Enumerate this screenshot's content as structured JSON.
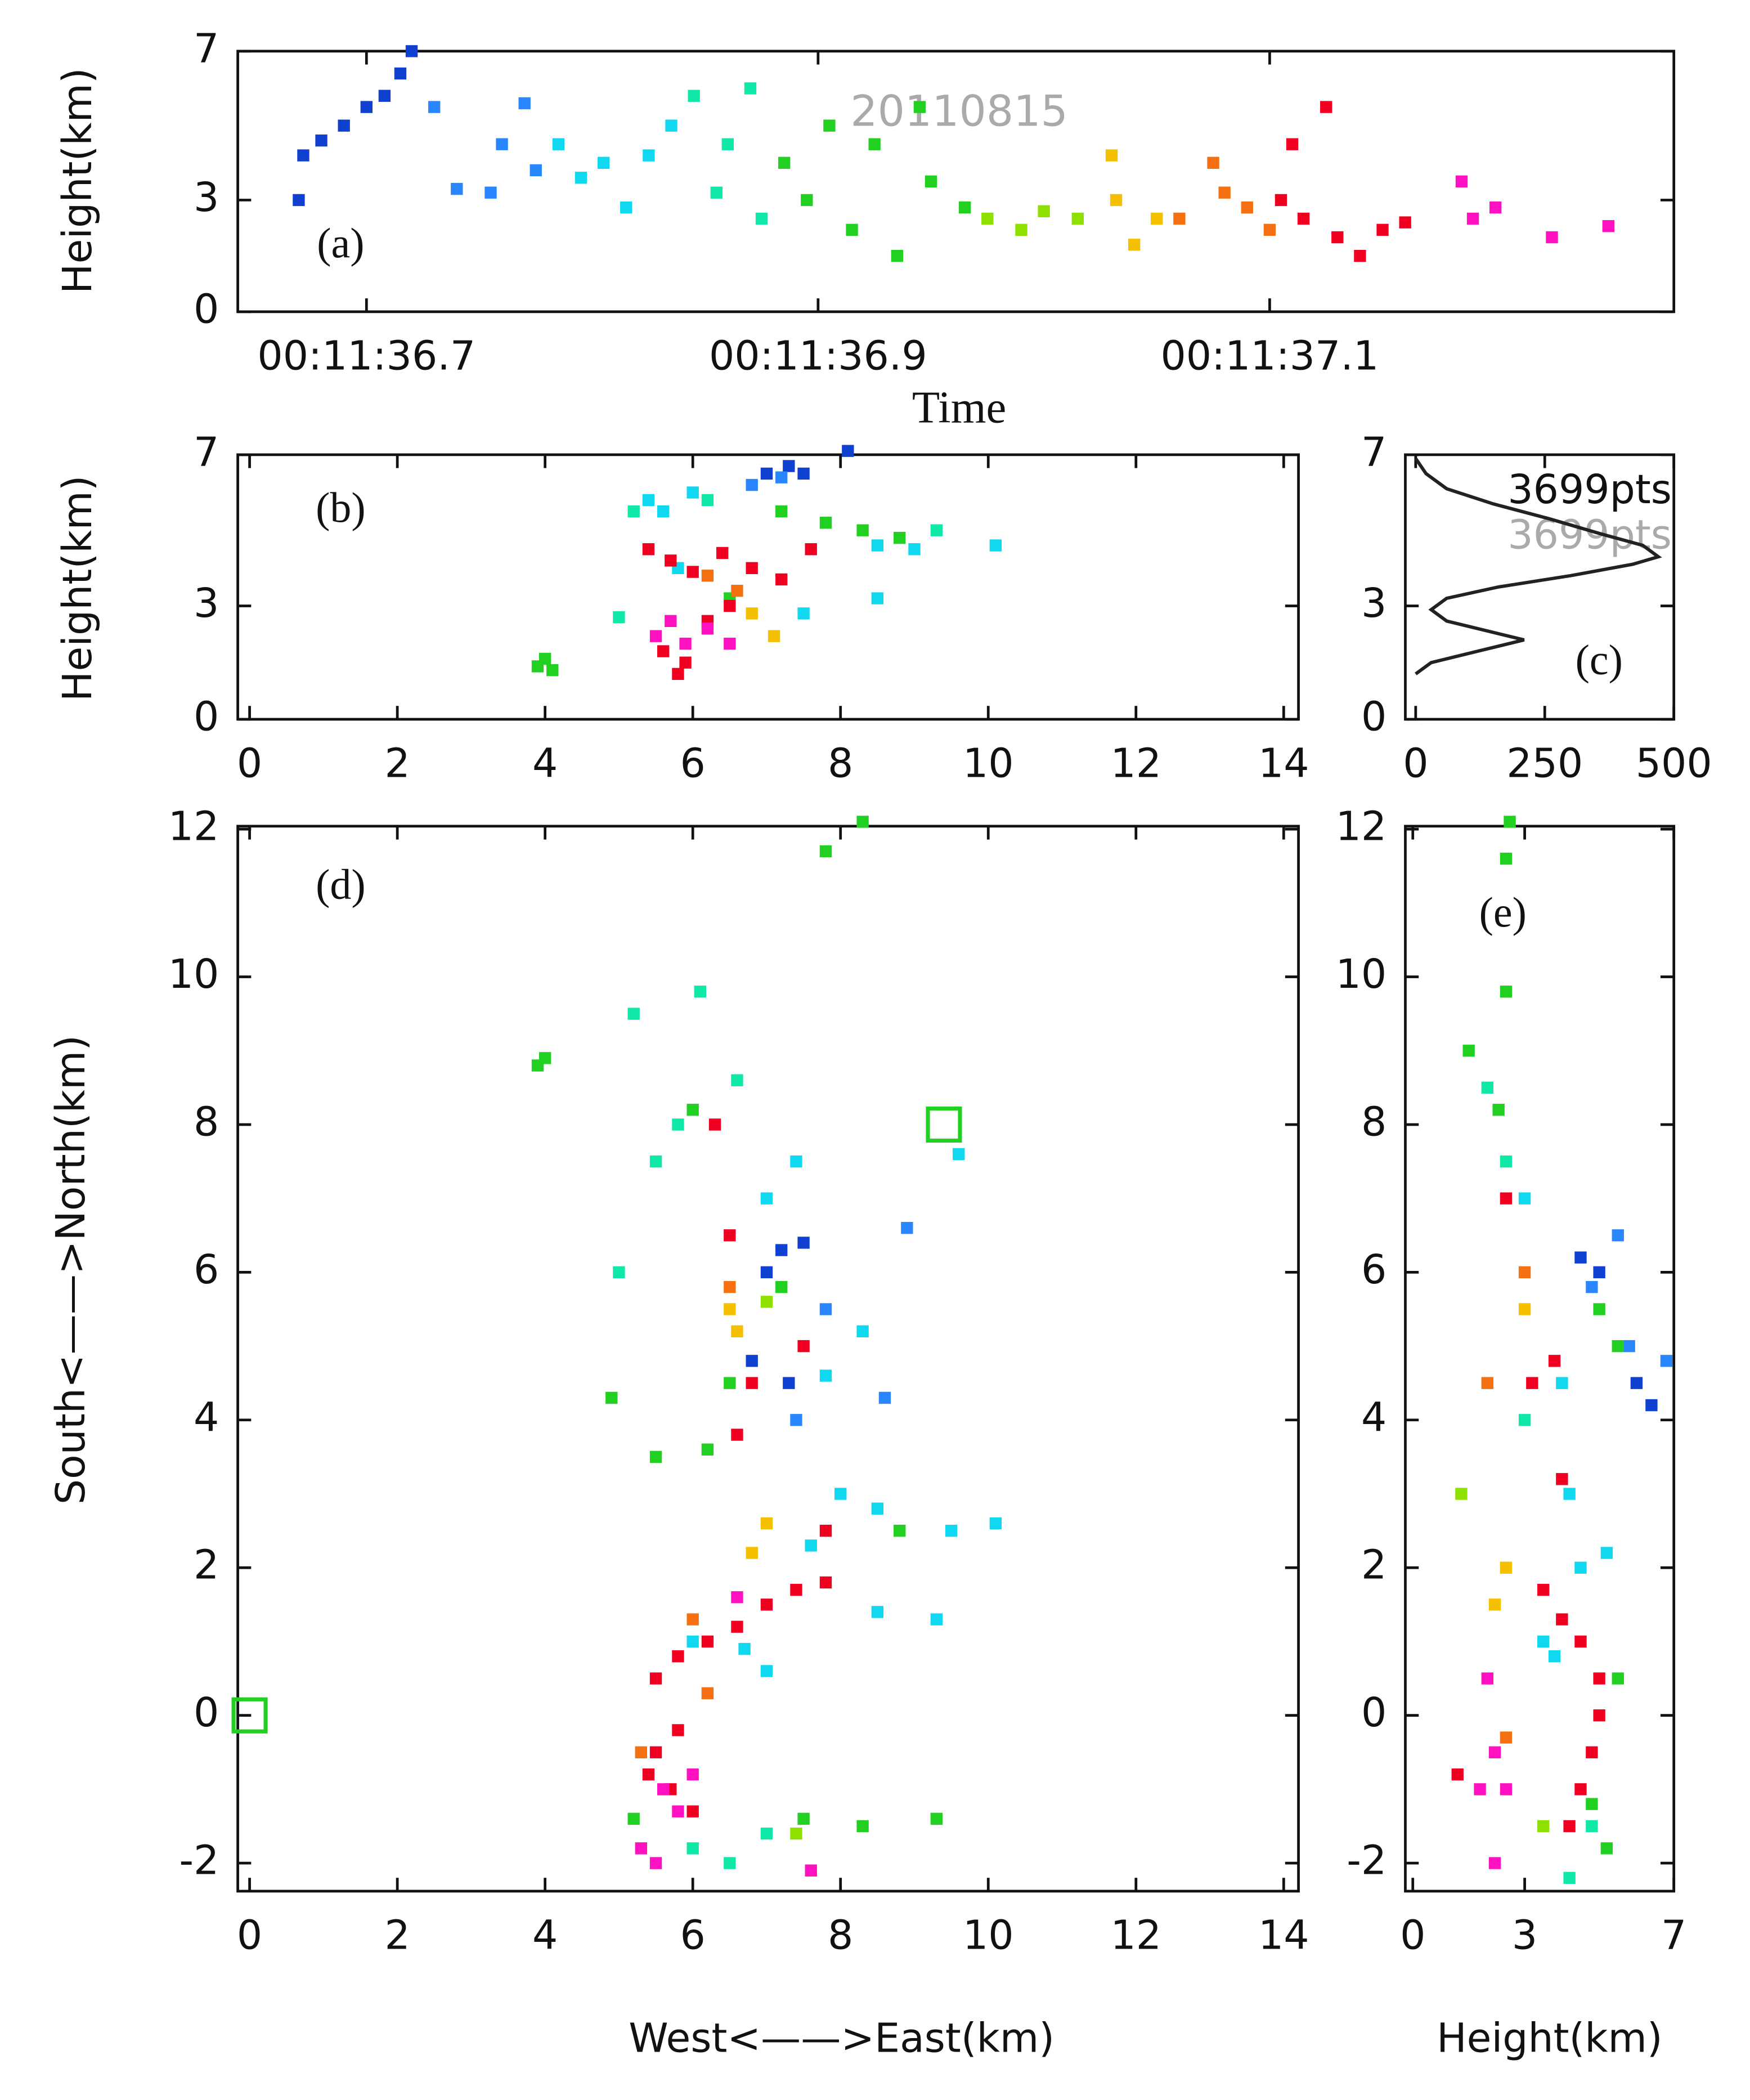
{
  "chart_data": [
    {
      "type": "scatter",
      "annotation": "(a)",
      "stamp": "20110815",
      "xlabel": "Time",
      "ylabel": "Height(km)",
      "xlim": [
        36.643,
        37.279
      ],
      "ylim": [
        0,
        7
      ],
      "xticks": [
        {
          "value": 36.7,
          "label": "00:11:36.7"
        },
        {
          "value": 36.9,
          "label": "00:11:36.9"
        },
        {
          "value": 37.1,
          "label": "00:11:37.1"
        }
      ],
      "yticks": [
        0,
        3,
        7
      ],
      "series": [
        {
          "color": "#1040d0",
          "x": [
            36.67,
            36.672,
            36.68,
            36.69,
            36.7,
            36.708,
            36.715,
            36.72
          ],
          "values": [
            3.0,
            4.2,
            4.6,
            5.0,
            5.5,
            5.8,
            6.4,
            7.0
          ]
        },
        {
          "color": "#2a86ff",
          "x": [
            36.73,
            36.74,
            36.755,
            36.76,
            36.77,
            36.775
          ],
          "values": [
            5.5,
            3.3,
            3.2,
            4.5,
            5.6,
            3.8
          ]
        },
        {
          "color": "#10d8f0",
          "x": [
            36.785,
            36.795,
            36.805,
            36.815,
            36.825,
            36.835
          ],
          "values": [
            4.5,
            3.6,
            4.0,
            2.8,
            4.2,
            5.0
          ]
        },
        {
          "color": "#10e8a8",
          "x": [
            36.845,
            36.855,
            36.86,
            36.87,
            36.875
          ],
          "values": [
            5.8,
            3.2,
            4.5,
            6.0,
            2.5
          ]
        },
        {
          "color": "#22d022",
          "x": [
            36.885,
            36.895,
            36.905,
            36.915,
            36.925,
            36.935,
            36.945,
            36.95,
            36.965
          ],
          "values": [
            4.0,
            3.0,
            5.0,
            2.2,
            4.5,
            1.5,
            5.5,
            3.5,
            2.8
          ]
        },
        {
          "color": "#8ee000",
          "x": [
            36.975,
            36.99,
            37.0,
            37.015
          ],
          "values": [
            2.5,
            2.2,
            2.7,
            2.5
          ]
        },
        {
          "color": "#f4c000",
          "x": [
            37.03,
            37.032,
            37.04,
            37.05
          ],
          "values": [
            4.2,
            3.0,
            1.8,
            2.5
          ]
        },
        {
          "color": "#f47010",
          "x": [
            37.06,
            37.075,
            37.08,
            37.09,
            37.1
          ],
          "values": [
            2.5,
            4.0,
            3.2,
            2.8,
            2.2
          ]
        },
        {
          "color": "#f00020",
          "x": [
            37.105,
            37.11,
            37.115,
            37.125,
            37.13,
            37.14,
            37.15,
            37.16
          ],
          "values": [
            3.0,
            4.5,
            2.5,
            5.5,
            2.0,
            1.5,
            2.2,
            2.4
          ]
        },
        {
          "color": "#ff10c0",
          "x": [
            37.185,
            37.19,
            37.2,
            37.225,
            37.25
          ],
          "values": [
            3.5,
            2.5,
            2.8,
            2.0,
            2.3
          ]
        }
      ]
    },
    {
      "type": "scatter",
      "annotation": "(b)",
      "ylabel": "Height(km)",
      "xlim": [
        -0.16,
        14.2
      ],
      "ylim": [
        0,
        7
      ],
      "xticks": [
        0,
        2,
        4,
        6,
        8,
        10,
        12,
        14
      ],
      "yticks": [
        0,
        3,
        7
      ],
      "series": [
        {
          "color": "#1040d0",
          "x": [
            7.0,
            7.3,
            7.5,
            8.1
          ],
          "values": [
            6.5,
            6.7,
            6.5,
            7.1
          ]
        },
        {
          "color": "#2a86ff",
          "x": [
            6.8,
            7.2
          ],
          "values": [
            6.2,
            6.4
          ]
        },
        {
          "color": "#10d8f0",
          "x": [
            5.4,
            5.6,
            6.0,
            8.5,
            9.0,
            10.1,
            5.8,
            7.5,
            8.5
          ],
          "values": [
            5.8,
            5.5,
            6.0,
            4.6,
            4.5,
            4.6,
            4.0,
            2.8,
            3.2
          ]
        },
        {
          "color": "#10e8a8",
          "x": [
            5.2,
            6.2,
            9.3,
            5.0
          ],
          "values": [
            5.5,
            5.8,
            5.0,
            2.7
          ]
        },
        {
          "color": "#22d022",
          "x": [
            4.0,
            3.9,
            4.1,
            7.8,
            8.3,
            8.8,
            7.2,
            6.5
          ],
          "values": [
            1.6,
            1.4,
            1.3,
            5.2,
            5.0,
            4.8,
            5.5,
            3.2
          ]
        },
        {
          "color": "#f4c000",
          "x": [
            6.8,
            7.1
          ],
          "values": [
            2.8,
            2.2
          ]
        },
        {
          "color": "#f47010",
          "x": [
            6.2,
            6.6
          ],
          "values": [
            3.8,
            3.4
          ]
        },
        {
          "color": "#f00020",
          "x": [
            5.4,
            5.7,
            6.0,
            6.4,
            6.8,
            7.2,
            7.6,
            6.2,
            5.6,
            5.9,
            6.5,
            5.8
          ],
          "values": [
            4.5,
            4.2,
            3.9,
            4.4,
            4.0,
            3.7,
            4.5,
            2.6,
            1.8,
            1.5,
            3.0,
            1.2
          ]
        },
        {
          "color": "#ff10c0",
          "x": [
            5.5,
            5.9,
            6.2,
            5.7,
            6.5
          ],
          "values": [
            2.2,
            2.0,
            2.4,
            2.6,
            2.0
          ]
        }
      ]
    },
    {
      "type": "line",
      "annotation": "(c)",
      "labels": [
        "3699pts",
        "3699pts"
      ],
      "color": "#222222",
      "xlim": [
        -20,
        500
      ],
      "ylim": [
        0,
        7
      ],
      "xticks": [
        0,
        250,
        500
      ],
      "yticks": [
        0,
        3,
        7
      ],
      "x": [
        0,
        30,
        120,
        210,
        150,
        60,
        30,
        60,
        160,
        300,
        420,
        470,
        440,
        360,
        260,
        150,
        60,
        20,
        0
      ],
      "values": [
        1.2,
        1.5,
        1.8,
        2.1,
        2.3,
        2.6,
        2.9,
        3.2,
        3.5,
        3.8,
        4.1,
        4.3,
        4.6,
        4.9,
        5.3,
        5.7,
        6.1,
        6.5,
        6.9
      ]
    },
    {
      "type": "scatter",
      "annotation": "(d)",
      "xlabel": "West<——>East(km)",
      "ylabel": "South<——>North(km)",
      "xlim": [
        -0.16,
        14.2
      ],
      "ylim": [
        -2.38,
        12.04
      ],
      "xticks": [
        0,
        2,
        4,
        6,
        8,
        10,
        12,
        14
      ],
      "yticks": [
        -2,
        0,
        2,
        4,
        6,
        8,
        10,
        12
      ],
      "stations": {
        "color": "#22d022",
        "x": [
          0,
          9.4
        ],
        "values": [
          0,
          8.0
        ]
      },
      "series": [
        {
          "color": "#1040d0",
          "x": [
            7.2,
            7.5,
            7.0,
            7.3,
            6.8
          ],
          "values": [
            6.3,
            6.4,
            6.0,
            4.5,
            4.8
          ]
        },
        {
          "color": "#2a86ff",
          "x": [
            7.8,
            8.6,
            8.9,
            7.4
          ],
          "values": [
            5.5,
            4.3,
            6.6,
            4.0
          ]
        },
        {
          "color": "#10d8f0",
          "x": [
            7.4,
            8.0,
            8.5,
            9.5,
            10.1,
            7.6,
            6.7,
            7.0,
            6.0,
            8.5,
            9.3,
            7.8,
            8.3,
            9.6,
            7.0
          ],
          "values": [
            7.5,
            3.0,
            2.8,
            2.5,
            2.6,
            2.3,
            0.9,
            0.6,
            1.0,
            1.4,
            1.3,
            4.6,
            5.2,
            7.6,
            7.0
          ]
        },
        {
          "color": "#10e8a8",
          "x": [
            5.2,
            5.5,
            5.0,
            6.1,
            6.0,
            6.5,
            7.0,
            5.5,
            5.8,
            6.6
          ],
          "values": [
            9.5,
            7.5,
            6.0,
            9.8,
            -1.8,
            -2.0,
            -1.6,
            -2.0,
            8.0,
            8.6
          ]
        },
        {
          "color": "#22d022",
          "x": [
            4.0,
            3.9,
            7.8,
            8.3,
            5.5,
            6.2,
            7.5,
            8.3,
            9.3,
            8.8,
            7.2,
            6.5,
            4.9,
            5.2,
            6.0
          ],
          "values": [
            8.9,
            8.8,
            11.7,
            12.1,
            3.5,
            3.6,
            -1.4,
            -1.5,
            -1.4,
            2.5,
            5.8,
            4.5,
            4.3,
            -1.4,
            8.2
          ]
        },
        {
          "color": "#8ee000",
          "x": [
            7.0,
            7.4
          ],
          "values": [
            5.6,
            -1.6
          ]
        },
        {
          "color": "#f4c000",
          "x": [
            6.5,
            7.0,
            6.8,
            6.6
          ],
          "values": [
            5.5,
            2.6,
            2.2,
            5.2
          ]
        },
        {
          "color": "#f47010",
          "x": [
            6.2,
            6.5,
            5.3,
            6.0
          ],
          "values": [
            0.3,
            5.8,
            -0.5,
            1.3
          ]
        },
        {
          "color": "#f00020",
          "x": [
            5.5,
            5.8,
            6.2,
            6.6,
            7.0,
            7.4,
            7.8,
            5.5,
            5.7,
            6.0,
            5.4,
            6.3,
            6.5,
            6.8,
            7.5,
            7.8,
            6.6,
            5.8
          ],
          "values": [
            0.5,
            0.8,
            1.0,
            1.2,
            1.5,
            1.7,
            1.8,
            -0.5,
            -1.0,
            -1.3,
            -0.8,
            8.0,
            6.5,
            4.5,
            5.0,
            2.5,
            3.8,
            -0.2
          ]
        },
        {
          "color": "#ff10c0",
          "x": [
            5.6,
            5.8,
            5.3,
            6.0,
            5.5,
            7.6,
            6.6
          ],
          "values": [
            -1.0,
            -1.3,
            -1.8,
            -0.8,
            -2.0,
            -2.1,
            1.6
          ]
        }
      ]
    },
    {
      "type": "scatter",
      "annotation": "(e)",
      "xlabel": "Height(km)",
      "xlim": [
        -0.2,
        7.0
      ],
      "ylim": [
        -2.38,
        12.04
      ],
      "xticks": [
        0,
        3,
        7
      ],
      "yticks": [
        -2,
        0,
        2,
        4,
        6,
        8,
        10,
        12
      ],
      "series": [
        {
          "color": "#1040d0",
          "x": [
            4.5,
            5.0,
            6.0,
            6.4
          ],
          "values": [
            6.2,
            6.0,
            4.5,
            4.2
          ]
        },
        {
          "color": "#2a86ff",
          "x": [
            5.5,
            6.8,
            5.8,
            4.8
          ],
          "values": [
            6.5,
            4.8,
            5.0,
            5.8
          ]
        },
        {
          "color": "#10d8f0",
          "x": [
            4.2,
            4.5,
            3.8,
            3.5,
            5.2,
            3.0,
            4.0
          ],
          "values": [
            3.0,
            2.0,
            0.8,
            1.0,
            2.2,
            7.0,
            4.5
          ]
        },
        {
          "color": "#10e8a8",
          "x": [
            2.0,
            2.5,
            4.2,
            4.8,
            3.0
          ],
          "values": [
            8.5,
            7.5,
            -2.2,
            -1.5,
            4.0
          ]
        },
        {
          "color": "#22d022",
          "x": [
            1.5,
            2.5,
            2.5,
            2.6,
            4.8,
            5.2,
            5.5,
            5.0,
            2.3,
            5.5
          ],
          "values": [
            9.0,
            9.8,
            11.6,
            12.1,
            -1.2,
            -1.8,
            5.0,
            5.5,
            8.2,
            0.5
          ]
        },
        {
          "color": "#8ee000",
          "x": [
            1.3,
            3.5
          ],
          "values": [
            3.0,
            -1.5
          ]
        },
        {
          "color": "#f4c000",
          "x": [
            2.5,
            3.0,
            2.2
          ],
          "values": [
            2.0,
            5.5,
            1.5
          ]
        },
        {
          "color": "#f47010",
          "x": [
            2.5,
            3.0,
            2.0
          ],
          "values": [
            -0.3,
            6.0,
            4.5
          ]
        },
        {
          "color": "#f00020",
          "x": [
            3.5,
            4.0,
            4.5,
            5.0,
            5.0,
            4.8,
            4.5,
            4.2,
            1.2,
            2.5,
            3.8,
            4.0,
            3.2
          ],
          "values": [
            1.7,
            1.3,
            1.0,
            0.5,
            0.0,
            -0.5,
            -1.0,
            -1.5,
            -0.8,
            7.0,
            4.8,
            3.2,
            4.5
          ]
        },
        {
          "color": "#ff10c0",
          "x": [
            2.0,
            2.2,
            2.5,
            2.2,
            1.8
          ],
          "values": [
            0.5,
            -0.5,
            -1.0,
            -2.0,
            -1.0
          ]
        }
      ]
    }
  ]
}
